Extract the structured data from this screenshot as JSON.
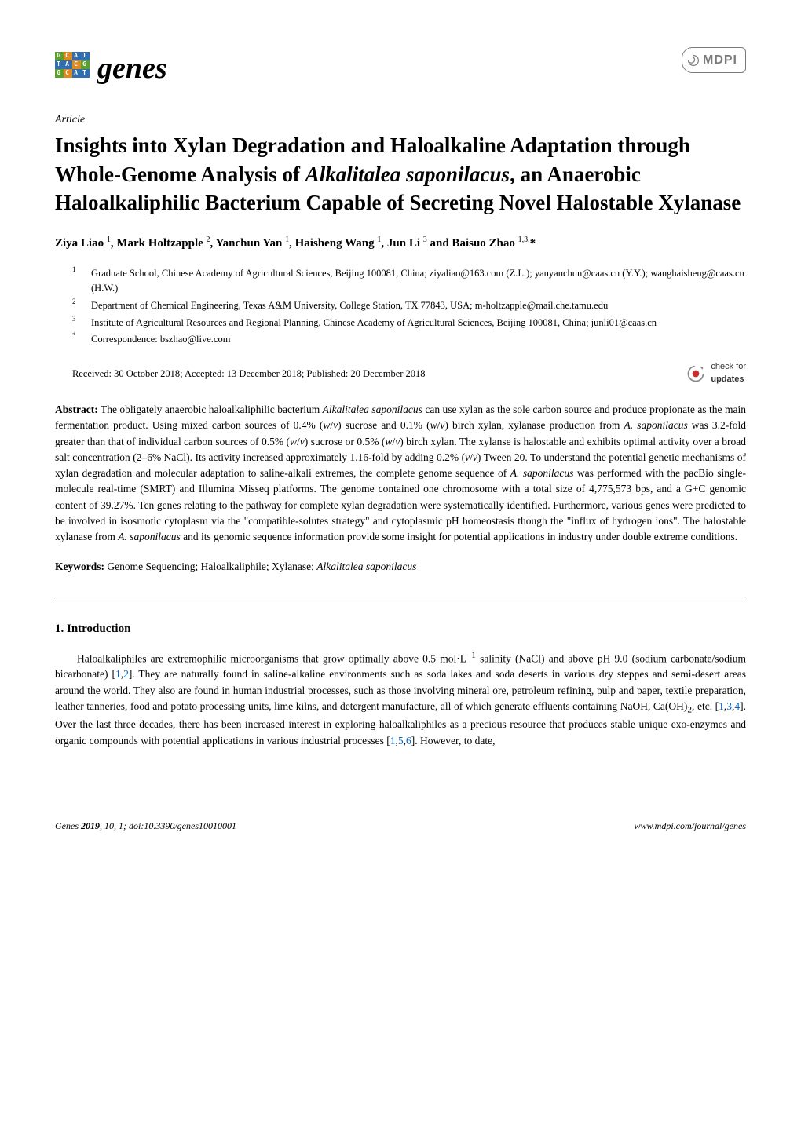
{
  "journal": {
    "name": "genes",
    "logo_colors": {
      "row1": [
        "#5aa02c",
        "#e08a1e",
        "#2f6fb0",
        "#2f6fb0"
      ],
      "row2": [
        "#2f6fb0",
        "#2f6fb0",
        "#e08a1e",
        "#5aa02c"
      ],
      "row3": [
        "#5aa02c",
        "#e08a1e",
        "#2f6fb0",
        "#2f6fb0"
      ]
    },
    "logo_letters": [
      [
        "G",
        "C",
        "A",
        "T"
      ],
      [
        "T",
        "A",
        "C",
        "G"
      ],
      [
        "G",
        "C",
        "A",
        "T"
      ]
    ],
    "publisher": "MDPI"
  },
  "article": {
    "type": "Article",
    "title_pre": "Insights into Xylan Degradation and Haloalkaline Adaptation through Whole-Genome Analysis of ",
    "title_species": "Alkalitalea saponilacus",
    "title_post": ", an Anaerobic Haloalkaliphilic Bacterium Capable of Secreting Novel Halostable Xylanase",
    "authors_html": "Ziya Liao <sup>1</sup>, Mark Holtzapple <sup>2</sup>, Yanchun Yan <sup>1</sup>, Haisheng Wang <sup>1</sup>, Jun Li <sup>3</sup> and Baisuo Zhao <sup>1,3,</sup>*",
    "affiliations": [
      {
        "n": "1",
        "text": "Graduate School, Chinese Academy of Agricultural Sciences, Beijing 100081, China; ziyaliao@163.com (Z.L.); yanyanchun@caas.cn (Y.Y.); wanghaisheng@caas.cn (H.W.)"
      },
      {
        "n": "2",
        "text": "Department of Chemical Engineering, Texas A&M University, College Station, TX 77843, USA; m-holtzapple@mail.che.tamu.edu"
      },
      {
        "n": "3",
        "text": "Institute of Agricultural Resources and Regional Planning, Chinese Academy of Agricultural Sciences, Beijing 100081, China; junli01@caas.cn"
      },
      {
        "n": "*",
        "text": "Correspondence: bszhao@live.com"
      }
    ],
    "dates": "Received: 30 October 2018; Accepted: 13 December 2018; Published: 20 December 2018",
    "updates_label": "check for",
    "updates_bold": "updates",
    "abstract_label": "Abstract:",
    "abstract_html": " The obligately anaerobic haloalkaliphilic bacterium <i>Alkalitalea saponilacus</i> can use xylan as the sole carbon source and produce propionate as the main fermentation product. Using mixed carbon sources of 0.4% (<i>w</i>/<i>v</i>) sucrose and 0.1% (<i>w</i>/<i>v</i>) birch xylan, xylanase production from <i>A. saponilacus</i> was 3.2-fold greater than that of individual carbon sources of 0.5% (<i>w</i>/<i>v</i>) sucrose or 0.5% (<i>w</i>/<i>v</i>) birch xylan. The xylanse is halostable and exhibits optimal activity over a broad salt concentration (2–6% NaCl). Its activity increased approximately 1.16-fold by adding 0.2% (<i>v</i>/<i>v</i>) Tween 20. To understand the potential genetic mechanisms of xylan degradation and molecular adaptation to saline-alkali extremes, the complete genome sequence of <i>A. saponilacus</i> was performed with the pacBio single-molecule real-time (SMRT) and Illumina Misseq platforms. The genome contained one chromosome with a total size of 4,775,573 bps, and a G+C genomic content of 39.27%. Ten genes relating to the pathway for complete xylan degradation were systematically identified. Furthermore, various genes were predicted to be involved in isosmotic cytoplasm via the \"compatible-solutes strategy\" and cytoplasmic pH homeostasis though the \"influx of hydrogen ions\". The halostable xylanase from <i>A. saponilacus</i> and its genomic sequence information provide some insight for potential applications in industry under double extreme conditions.",
    "keywords_label": "Keywords:",
    "keywords_html": " Genome Sequencing; Haloalkaliphile; Xylanase; <i>Alkalitalea saponilacus</i>"
  },
  "section1": {
    "heading": "1. Introduction",
    "body_html": "Haloalkaliphiles are extremophilic microorganisms that grow optimally above 0.5 mol·L<sup>−1</sup> salinity (NaCl) and above pH 9.0 (sodium carbonate/sodium bicarbonate) [<span class=\"ref\">1</span>,<span class=\"ref\">2</span>]. They are naturally found in saline-alkaline environments such as soda lakes and soda deserts in various dry steppes and semi-desert areas around the world. They also are found in human industrial processes, such as those involving mineral ore, petroleum refining, pulp and paper, textile preparation, leather tanneries, food and potato processing units, lime kilns, and detergent manufacture, all of which generate effluents containing NaOH, Ca(OH)<sub>2</sub>, etc. [<span class=\"ref\">1</span>,<span class=\"ref\">3</span>,<span class=\"ref\">4</span>]. Over the last three decades, there has been increased interest in exploring haloalkaliphiles as a precious resource that produces stable unique exo-enzymes and organic compounds with potential applications in various industrial processes [<span class=\"ref\">1</span>,<span class=\"ref\">5</span>,<span class=\"ref\">6</span>]. However, to date,"
  },
  "footer": {
    "left": "Genes 2019, 10, 1; doi:10.3390/genes10010001",
    "right": "www.mdpi.com/journal/genes"
  },
  "colors": {
    "text": "#000000",
    "ref_link": "#0066cc",
    "mdpi_gray": "#7a7a7a",
    "updates_red": "#c73030",
    "updates_gray": "#8a8a8a"
  }
}
